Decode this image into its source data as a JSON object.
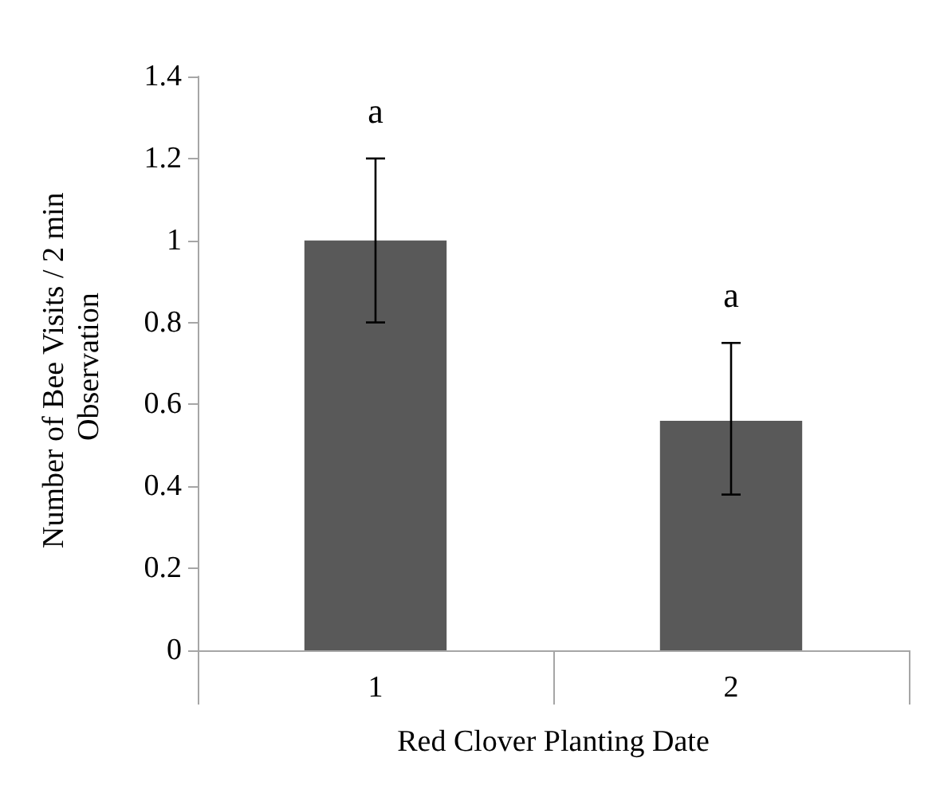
{
  "chart_data": {
    "type": "bar",
    "xlabel": "Red Clover Planting Date",
    "ylabel": "Number of Bee Visits / 2 min Observation",
    "categories": [
      "1",
      "2"
    ],
    "values": [
      1.0,
      0.56
    ],
    "errors": [
      [
        0.8,
        1.2
      ],
      [
        0.38,
        0.75
      ]
    ],
    "color": "#595959",
    "ylim": [
      0,
      1.4
    ],
    "yticks": [
      0,
      0.2,
      0.4,
      0.6,
      0.8,
      1,
      1.2,
      1.4
    ],
    "annotations": [
      "a",
      "a"
    ],
    "grid": false
  }
}
